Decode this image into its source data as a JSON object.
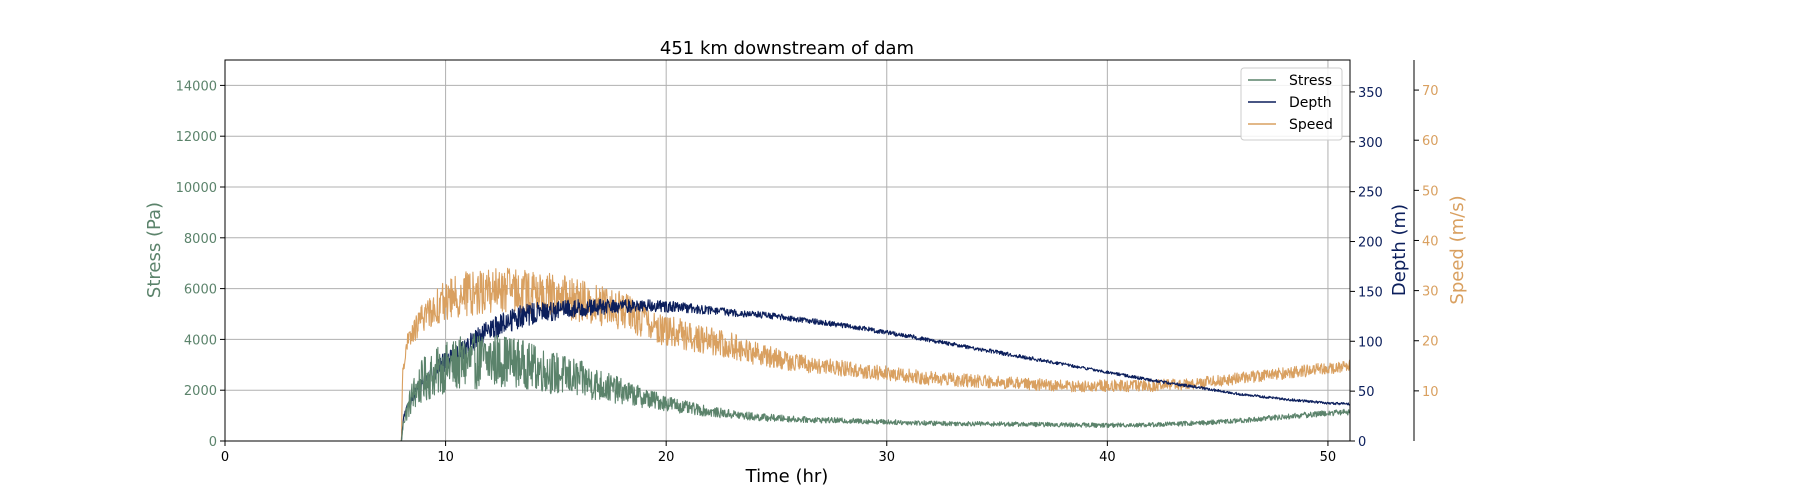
{
  "chart_data": {
    "type": "line",
    "title": "451 km downstream of dam",
    "xlabel": "Time (hr)",
    "xlim": [
      0,
      51
    ],
    "xticks": [
      0,
      10,
      20,
      30,
      40,
      50
    ],
    "grid": true,
    "legend_placement": "top-right",
    "axes": {
      "stress": {
        "label": "Stress (Pa)",
        "color": "#5b836b",
        "ylim": [
          0,
          15000
        ],
        "ticks": [
          0,
          2000,
          4000,
          6000,
          8000,
          10000,
          12000,
          14000
        ],
        "side": "left"
      },
      "depth": {
        "label": "Depth (m)",
        "color": "#0c1f5c",
        "ylim": [
          0,
          382
        ],
        "ticks": [
          0,
          50,
          100,
          150,
          200,
          250,
          300,
          350
        ],
        "side": "right"
      },
      "speed": {
        "label": "Speed (m/s)",
        "color": "#d9a060",
        "ylim": [
          0,
          76
        ],
        "ticks": [
          10,
          20,
          30,
          40,
          50,
          60,
          70
        ],
        "side": "right-offset"
      }
    },
    "series": [
      {
        "name": "Stress",
        "axis": "stress",
        "color": "#5b836b",
        "x": [
          0,
          8,
          8.1,
          8.5,
          9,
          10,
          11,
          12,
          13,
          14,
          15,
          16,
          17,
          18,
          19,
          20,
          21,
          22,
          23,
          24,
          25,
          26,
          28,
          30,
          32,
          34,
          36,
          38,
          40,
          42,
          44,
          46,
          48,
          50,
          51
        ],
        "y": [
          0,
          0,
          800,
          1800,
          2400,
          2900,
          3100,
          3200,
          3150,
          2900,
          2650,
          2450,
          2200,
          1950,
          1700,
          1500,
          1300,
          1150,
          1050,
          950,
          900,
          850,
          800,
          750,
          700,
          680,
          660,
          640,
          620,
          640,
          700,
          800,
          950,
          1100,
          1150
        ],
        "noise": [
          0,
          0,
          200,
          700,
          900,
          1000,
          1100,
          1100,
          1000,
          900,
          850,
          750,
          650,
          500,
          400,
          320,
          250,
          200,
          180,
          160,
          140,
          120,
          110,
          100,
          95,
          90,
          90,
          90,
          90,
          90,
          95,
          100,
          110,
          120,
          120
        ]
      },
      {
        "name": "Depth",
        "axis": "depth",
        "color": "#0c1f5c",
        "x": [
          0,
          8,
          8.1,
          8.5,
          9,
          10,
          11,
          12,
          13,
          14,
          15,
          16,
          17,
          18,
          19,
          20,
          21,
          22,
          23,
          24,
          25,
          26,
          28,
          30,
          32,
          34,
          36,
          38,
          40,
          42,
          44,
          46,
          48,
          50,
          51
        ],
        "y": [
          0,
          0,
          25,
          45,
          60,
          80,
          95,
          110,
          122,
          128,
          131,
          133,
          134,
          135,
          136,
          135,
          133,
          131,
          129,
          127,
          125,
          122,
          116,
          109,
          101,
          93,
          85,
          77,
          69,
          61,
          54,
          47,
          42,
          38,
          37
        ],
        "noise": [
          0,
          0,
          3,
          6,
          8,
          10,
          11,
          12,
          12,
          11,
          10,
          9,
          8,
          7,
          6,
          6,
          5,
          4,
          4,
          3.5,
          3,
          3,
          2.5,
          2.5,
          2,
          2,
          2,
          1.5,
          1.5,
          1.5,
          1.5,
          1.2,
          1.2,
          1.2,
          1.2
        ]
      },
      {
        "name": "Speed",
        "axis": "speed",
        "color": "#d9a060",
        "x": [
          0,
          8,
          8.05,
          8.3,
          9,
          10,
          11,
          12,
          13,
          14,
          15,
          16,
          17,
          18,
          19,
          20,
          21,
          22,
          23,
          24,
          25,
          26,
          28,
          30,
          32,
          34,
          36,
          38,
          40,
          42,
          44,
          46,
          48,
          50,
          51
        ],
        "y": [
          0,
          0,
          14,
          20,
          25,
          28,
          29.5,
          30,
          30,
          29.5,
          29,
          28,
          27,
          26,
          24,
          22,
          21,
          20,
          19,
          17.5,
          16.5,
          15.5,
          14.5,
          13.5,
          12.5,
          12,
          11.5,
          11,
          11,
          11,
          11.5,
          12.5,
          13.5,
          14.5,
          15
        ],
        "noise": [
          0,
          0,
          1,
          2,
          3,
          4,
          4.5,
          4.5,
          4.5,
          4.5,
          4.5,
          4.2,
          4,
          3.8,
          3.5,
          3.2,
          3,
          2.8,
          2.6,
          2.3,
          2,
          1.8,
          1.6,
          1.5,
          1.4,
          1.3,
          1.2,
          1.2,
          1.2,
          1.2,
          1.2,
          1.2,
          1.2,
          1.2,
          1.2
        ]
      }
    ]
  }
}
